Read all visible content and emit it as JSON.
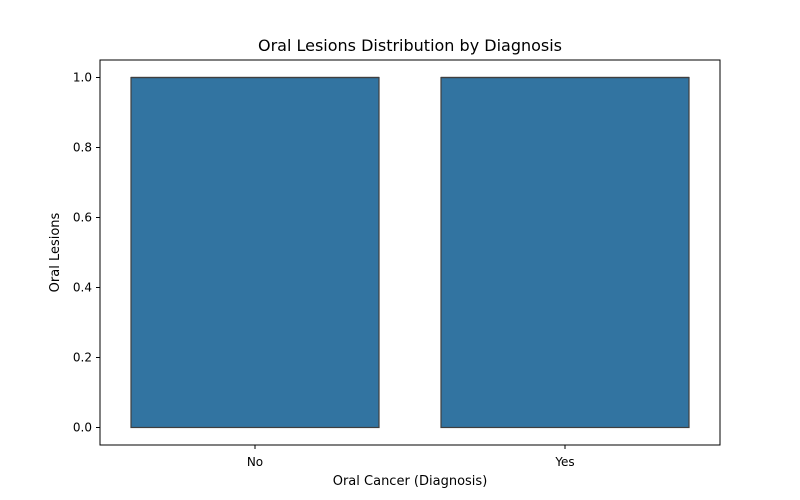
{
  "chart_data": {
    "type": "box",
    "title": "Oral Lesions Distribution by Diagnosis",
    "xlabel": "Oral Cancer (Diagnosis)",
    "ylabel": "Oral Lesions",
    "categories": [
      "No",
      "Yes"
    ],
    "boxes": [
      {
        "category": "No",
        "min": 0,
        "q1": 0,
        "median": 1,
        "q3": 1,
        "max": 1
      },
      {
        "category": "Yes",
        "min": 0,
        "q1": 0,
        "median": 1,
        "q3": 1,
        "max": 1
      }
    ],
    "ylim": [
      -0.05,
      1.05
    ],
    "yticks": [
      0.0,
      0.2,
      0.4,
      0.6,
      0.8,
      1.0
    ],
    "ytick_labels": [
      "0.0",
      "0.2",
      "0.4",
      "0.6",
      "0.8",
      "1.0"
    ],
    "grid": false,
    "legend": "none",
    "colors": {
      "box_fill": "#3274a1",
      "box_edge": "#3f3f3f"
    }
  }
}
